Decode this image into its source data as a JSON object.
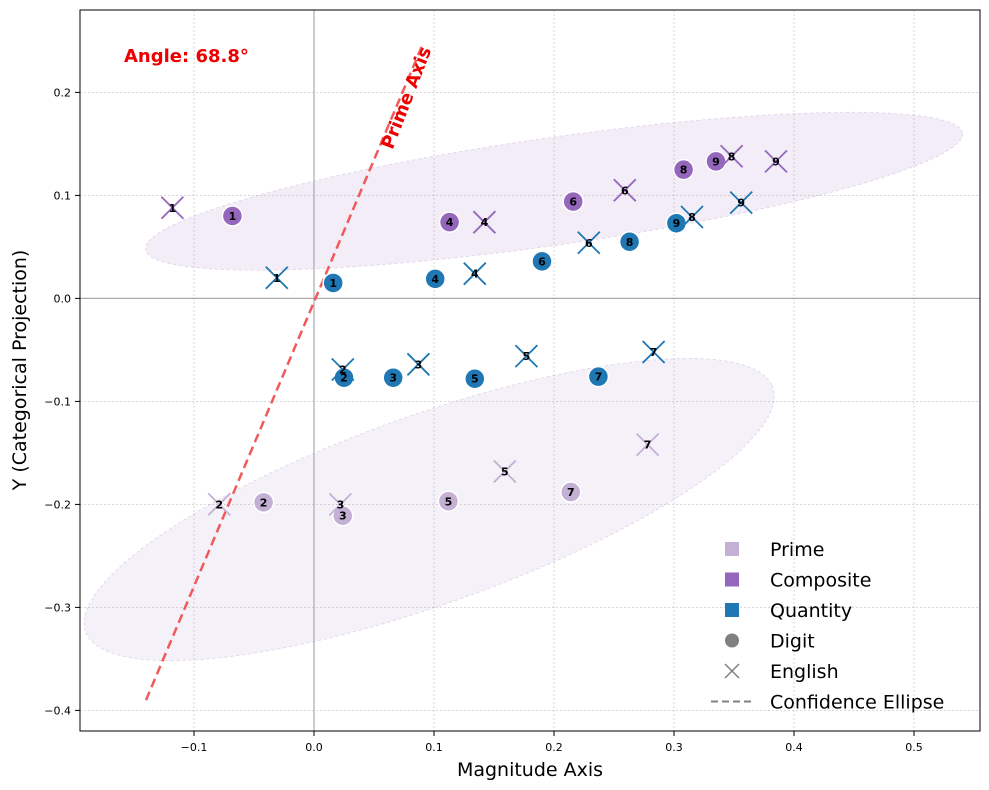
{
  "chart_data": {
    "type": "scatter",
    "title": "",
    "xlabel": "Magnitude Axis",
    "ylabel": "Y (Categorical Projection)",
    "xlim": [
      -0.195,
      0.555
    ],
    "ylim": [
      -0.42,
      0.28
    ],
    "xticks": [
      -0.1,
      0.0,
      0.1,
      0.2,
      0.3,
      0.4,
      0.5
    ],
    "xtick_labels": [
      "−0.1",
      "0.0",
      "0.1",
      "0.2",
      "0.3",
      "0.4",
      "0.5"
    ],
    "yticks": [
      -0.4,
      -0.3,
      -0.2,
      -0.1,
      0.0,
      0.1,
      0.2
    ],
    "ytick_labels": [
      "−0.4",
      "−0.3",
      "−0.2",
      "−0.1",
      "0.0",
      "0.1",
      "0.2"
    ],
    "grid": true,
    "legend_position": "lower-right",
    "colors": {
      "prime": "#c5b0d5",
      "composite": "#9467bd",
      "quantity": "#1f77b4",
      "neutral": "#808080",
      "prime_axis": "#f05a5a",
      "angle_text": "#ee0000"
    },
    "annotation": {
      "angle_text": "Angle: 68.8°",
      "axis_label": "Prime Axis"
    },
    "prime_axis_line": {
      "from": [
        -0.14,
        -0.39
      ],
      "to": [
        0.09,
        0.245
      ]
    },
    "ellipses": [
      {
        "name": "composite",
        "center": [
          0.2,
          0.104
        ],
        "rx": 0.345,
        "ry": 0.052,
        "angle_deg": 9.5
      },
      {
        "name": "prime",
        "center": [
          0.096,
          -0.205
        ],
        "rx": 0.31,
        "ry": 0.09,
        "angle_deg": 23
      }
    ],
    "legend": [
      {
        "label": "Prime",
        "symbol": "square",
        "color": "prime"
      },
      {
        "label": "Composite",
        "symbol": "square",
        "color": "composite"
      },
      {
        "label": "Quantity",
        "symbol": "square",
        "color": "quantity"
      },
      {
        "label": "Digit",
        "symbol": "circle",
        "color": "neutral"
      },
      {
        "label": "English",
        "symbol": "x",
        "color": "neutral"
      },
      {
        "label": "Confidence Ellipse",
        "symbol": "dash",
        "color": "neutral"
      }
    ],
    "series": [
      {
        "category": "composite",
        "form": "digit",
        "points": [
          {
            "x": -0.068,
            "y": 0.08,
            "label": "1"
          },
          {
            "x": 0.113,
            "y": 0.074,
            "label": "4"
          },
          {
            "x": 0.216,
            "y": 0.094,
            "label": "6"
          },
          {
            "x": 0.308,
            "y": 0.125,
            "label": "8"
          },
          {
            "x": 0.335,
            "y": 0.133,
            "label": "9"
          }
        ]
      },
      {
        "category": "composite",
        "form": "english",
        "points": [
          {
            "x": -0.118,
            "y": 0.088,
            "label": "1"
          },
          {
            "x": 0.142,
            "y": 0.074,
            "label": "4"
          },
          {
            "x": 0.259,
            "y": 0.105,
            "label": "6"
          },
          {
            "x": 0.348,
            "y": 0.138,
            "label": "8"
          },
          {
            "x": 0.385,
            "y": 0.133,
            "label": "9"
          }
        ]
      },
      {
        "category": "quantity",
        "form": "digit",
        "points": [
          {
            "x": 0.016,
            "y": 0.015,
            "label": "1"
          },
          {
            "x": 0.025,
            "y": -0.077,
            "label": "2"
          },
          {
            "x": 0.066,
            "y": -0.077,
            "label": "3"
          },
          {
            "x": 0.101,
            "y": 0.019,
            "label": "4"
          },
          {
            "x": 0.134,
            "y": -0.078,
            "label": "5"
          },
          {
            "x": 0.19,
            "y": 0.036,
            "label": "6"
          },
          {
            "x": 0.237,
            "y": -0.076,
            "label": "7"
          },
          {
            "x": 0.263,
            "y": 0.055,
            "label": "8"
          },
          {
            "x": 0.302,
            "y": 0.073,
            "label": "9"
          }
        ]
      },
      {
        "category": "quantity",
        "form": "english",
        "points": [
          {
            "x": -0.031,
            "y": 0.02,
            "label": "1"
          },
          {
            "x": 0.024,
            "y": -0.069,
            "label": "2"
          },
          {
            "x": 0.087,
            "y": -0.064,
            "label": "3"
          },
          {
            "x": 0.134,
            "y": 0.024,
            "label": "4"
          },
          {
            "x": 0.177,
            "y": -0.056,
            "label": "5"
          },
          {
            "x": 0.229,
            "y": 0.054,
            "label": "6"
          },
          {
            "x": 0.283,
            "y": -0.052,
            "label": "7"
          },
          {
            "x": 0.315,
            "y": 0.079,
            "label": "8"
          },
          {
            "x": 0.356,
            "y": 0.093,
            "label": "9"
          }
        ]
      },
      {
        "category": "prime",
        "form": "digit",
        "points": [
          {
            "x": -0.042,
            "y": -0.198,
            "label": "2"
          },
          {
            "x": 0.024,
            "y": -0.211,
            "label": "3"
          },
          {
            "x": 0.112,
            "y": -0.197,
            "label": "5"
          },
          {
            "x": 0.214,
            "y": -0.188,
            "label": "7"
          }
        ]
      },
      {
        "category": "prime",
        "form": "english",
        "points": [
          {
            "x": -0.079,
            "y": -0.2,
            "label": "2"
          },
          {
            "x": 0.022,
            "y": -0.2,
            "label": "3"
          },
          {
            "x": 0.159,
            "y": -0.168,
            "label": "5"
          },
          {
            "x": 0.278,
            "y": -0.142,
            "label": "7"
          }
        ]
      }
    ]
  }
}
